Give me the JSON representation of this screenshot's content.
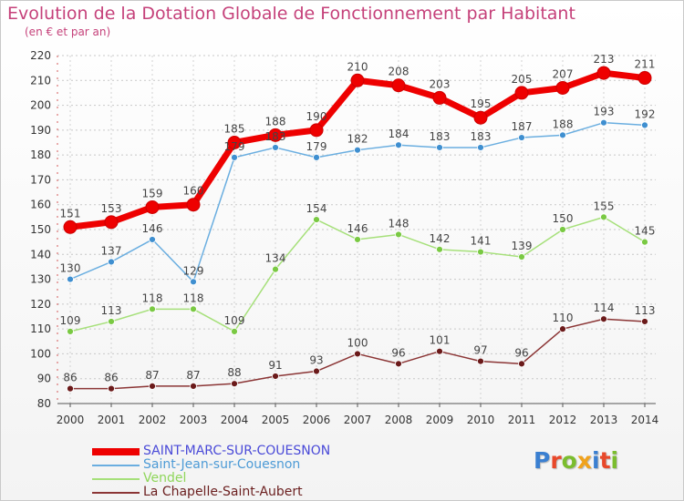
{
  "header": {
    "title": "Evolution de la Dotation Globale de Fonctionnement par Habitant",
    "subtitle": "(en € et par an)"
  },
  "logo": {
    "text": "Proxiti",
    "colors": [
      "#3a7fd1",
      "#e8482a",
      "#7bbd2e",
      "#f0a21c",
      "#3a7fd1",
      "#e8482a",
      "#7bbd2e"
    ]
  },
  "chart_data": {
    "type": "line",
    "title": "Evolution de la Dotation Globale de Fonctionnement par Habitant",
    "subtitle": "(en € et par an)",
    "x": [
      "2000",
      "2001",
      "2002",
      "2003",
      "2004",
      "2005",
      "2006",
      "2007",
      "2008",
      "2009",
      "2010",
      "2011",
      "2012",
      "2013",
      "2014"
    ],
    "ylim": [
      80,
      220
    ],
    "yticks": [
      80,
      90,
      100,
      110,
      120,
      130,
      140,
      150,
      160,
      170,
      180,
      190,
      200,
      210,
      220
    ],
    "grid": true,
    "legend_position": "bottom-left",
    "series": [
      {
        "name": "SAINT-MARC-SUR-COUESNON",
        "color": "#ee0000",
        "line_color": "#ee0000",
        "marker_color": "#ee0000",
        "legend_color": "#4a4ad8",
        "values": [
          151,
          153,
          159,
          160,
          185,
          188,
          190,
          210,
          208,
          203,
          195,
          205,
          207,
          213,
          211
        ],
        "labels": [
          "151",
          "153",
          "159",
          "160",
          "185",
          "188",
          "190",
          "210",
          "208",
          "203",
          "195",
          "205",
          "207",
          "213",
          "211"
        ]
      },
      {
        "name": "Saint-Jean-sur-Couesnon",
        "color": "#4d9bd6",
        "line_color": "#6aaee0",
        "marker_color": "#3f8fd0",
        "legend_color": "#4d9bd6",
        "values": [
          130,
          137,
          146,
          129,
          179,
          183,
          179,
          182,
          184,
          183,
          183,
          187,
          188,
          193,
          192
        ],
        "labels": [
          "130",
          "137",
          "146",
          "129",
          "179",
          "183",
          "179",
          "182",
          "184",
          "183",
          "183",
          "187",
          "188",
          "193",
          "192"
        ]
      },
      {
        "name": "Vendel",
        "color": "#8fd65a",
        "line_color": "#a6e07a",
        "marker_color": "#7ac943",
        "legend_color": "#8fd65a",
        "values": [
          109,
          113,
          118,
          118,
          109,
          134,
          154,
          146,
          148,
          142,
          141,
          139,
          150,
          155,
          145
        ],
        "labels": [
          "109",
          "113",
          "118",
          "118",
          "109",
          "134",
          "154",
          "146",
          "148",
          "142",
          "141",
          "139",
          "150",
          "155",
          "145"
        ]
      },
      {
        "name": "La Chapelle-Saint-Aubert",
        "color": "#7a2525",
        "line_color": "#8b3535",
        "marker_color": "#6b1a1a",
        "legend_color": "#6b1f1f",
        "values": [
          86,
          86,
          87,
          87,
          88,
          91,
          93,
          100,
          96,
          101,
          97,
          96,
          110,
          114,
          113
        ],
        "labels": [
          "86",
          "86",
          "87",
          "87",
          "88",
          "91",
          "93",
          "100",
          "96",
          "101",
          "97",
          "96",
          "110",
          "114",
          "113"
        ]
      }
    ]
  }
}
